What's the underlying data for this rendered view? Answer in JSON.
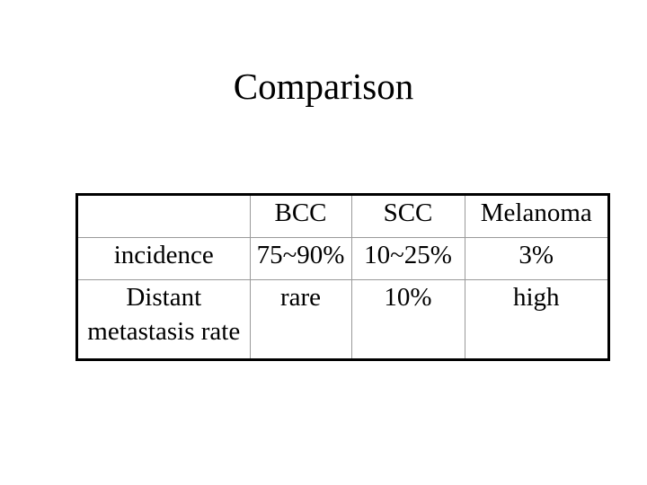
{
  "slide": {
    "title": "Comparison"
  },
  "table": {
    "columns": [
      "",
      "BCC",
      "SCC",
      "Melanoma"
    ],
    "rows": [
      {
        "label_lines": [
          "incidence"
        ],
        "values": [
          "75~90%",
          "10~25%",
          "3%"
        ]
      },
      {
        "label_lines": [
          "Distant",
          "metastasis rate"
        ],
        "values": [
          "rare",
          "10%",
          "high"
        ]
      }
    ]
  }
}
